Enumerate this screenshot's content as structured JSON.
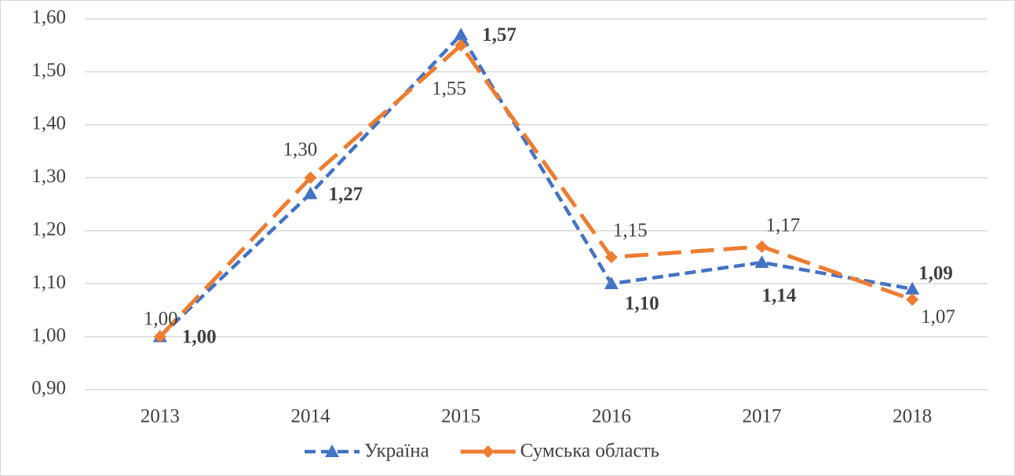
{
  "chart_data": {
    "type": "line",
    "categories": [
      "2013",
      "2014",
      "2015",
      "2016",
      "2017",
      "2018"
    ],
    "series": [
      {
        "name": "Україна",
        "color": "#4472c4",
        "values": [
          1.0,
          1.27,
          1.57,
          1.1,
          1.14,
          1.09
        ],
        "value_labels": [
          "1,00",
          "1,27",
          "1,57",
          "1,10",
          "1,14",
          "1,09"
        ]
      },
      {
        "name": "Сумська область",
        "color": "#ed7d31",
        "values": [
          1.0,
          1.3,
          1.55,
          1.15,
          1.17,
          1.07
        ],
        "value_labels": [
          "1,00",
          "1,30",
          "1,55",
          "1,15",
          "1,17",
          "1,07"
        ]
      }
    ],
    "ylim": [
      0.9,
      1.6
    ],
    "yticks": [
      {
        "value": 0.9,
        "label": "0,90"
      },
      {
        "value": 1.0,
        "label": "1,00"
      },
      {
        "value": 1.1,
        "label": "1,10"
      },
      {
        "value": 1.2,
        "label": "1,20"
      },
      {
        "value": 1.3,
        "label": "1,30"
      },
      {
        "value": 1.4,
        "label": "1,40"
      },
      {
        "value": 1.5,
        "label": "1,50"
      },
      {
        "value": 1.6,
        "label": "1,60"
      }
    ],
    "grid": true,
    "legend": "bottom"
  }
}
